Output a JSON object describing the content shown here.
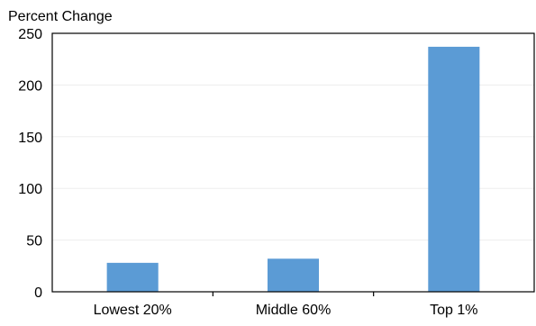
{
  "chart_data": {
    "type": "bar",
    "title": "",
    "ylabel": "Percent Change",
    "xlabel": "",
    "categories": [
      "Lowest 20%",
      "Middle 60%",
      "Top 1%"
    ],
    "values": [
      28,
      32,
      237
    ],
    "ylim": [
      0,
      250
    ],
    "yticks": [
      0,
      50,
      100,
      150,
      200,
      250
    ],
    "grid": true,
    "bar_color": "#5B9BD5",
    "grid_color": "#EDEDED"
  }
}
